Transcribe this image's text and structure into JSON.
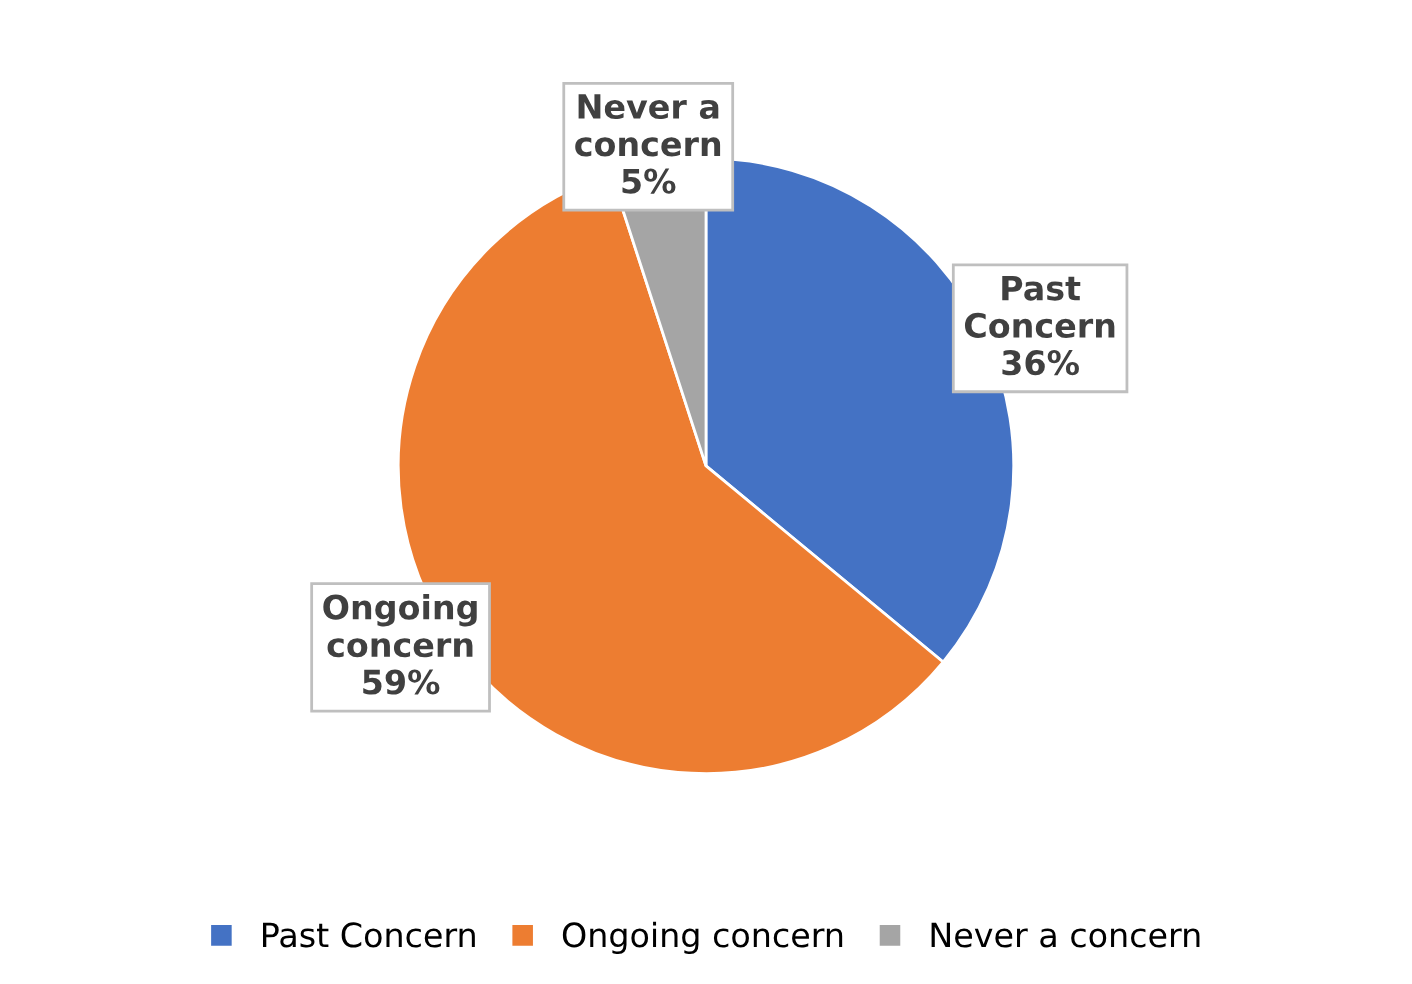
{
  "chart_data": {
    "type": "pie",
    "categories": [
      "Past Concern",
      "Ongoing concern",
      "Never a concern"
    ],
    "values": [
      36,
      59,
      5
    ],
    "colors": [
      "#4472c4",
      "#ed7d31",
      "#a5a5a5"
    ],
    "value_labels": [
      "Past\nConcern\n36%",
      "Ongoing\nconcern\n59%",
      "Never a\nconcern\n5%"
    ],
    "legend": "bottom"
  }
}
